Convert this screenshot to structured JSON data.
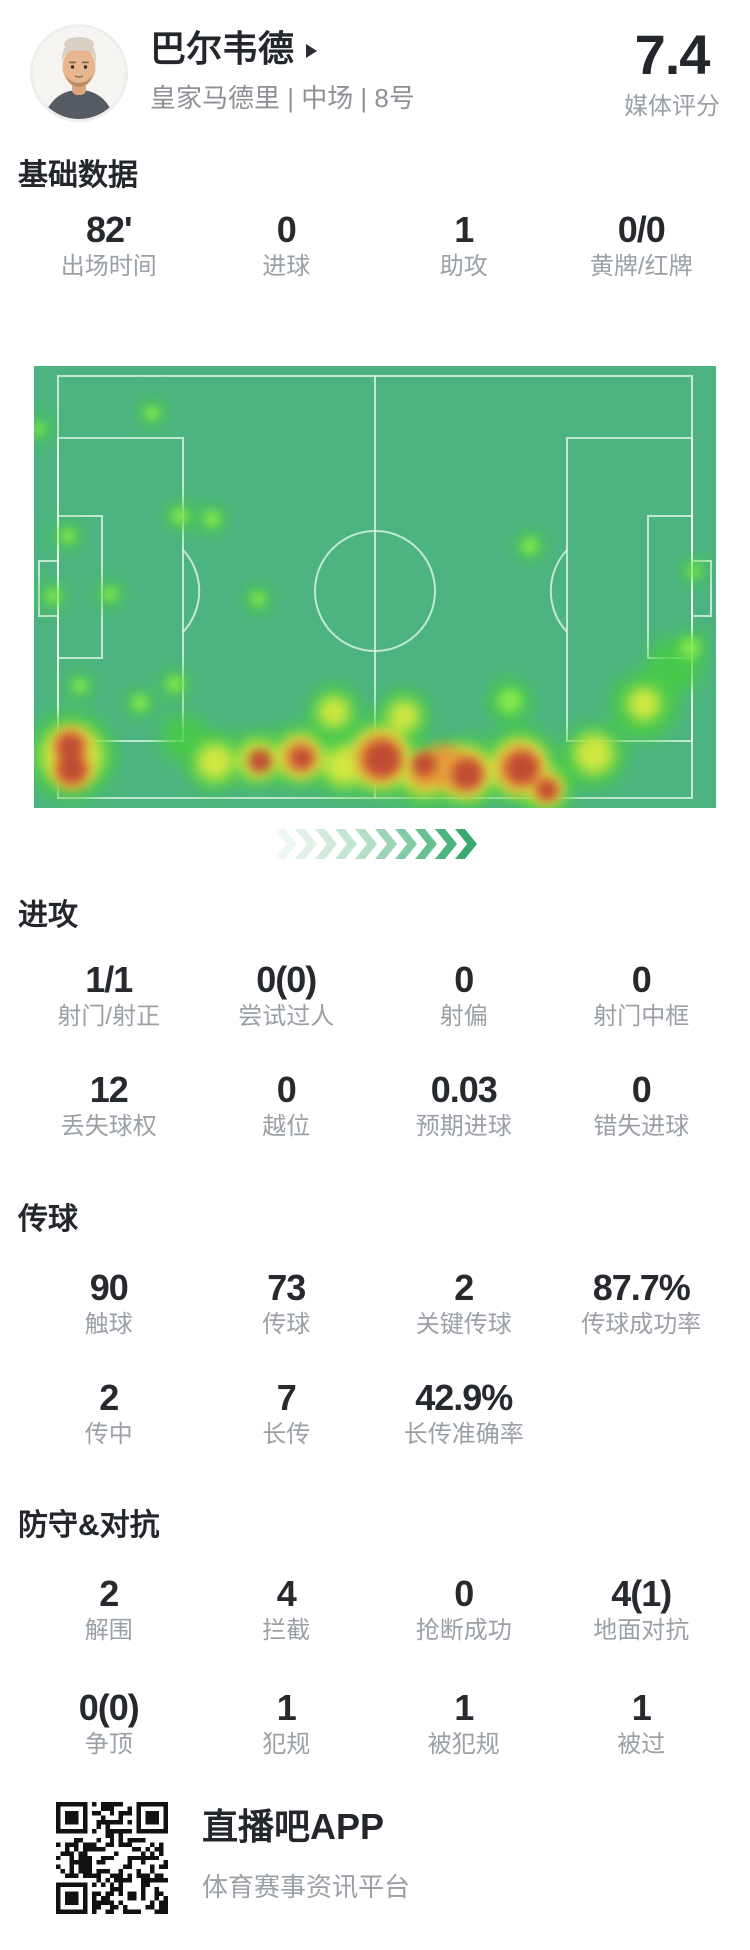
{
  "header": {
    "player_name": "巴尔韦德",
    "team_line": "皇家马德里 | 中场 | 8号",
    "rating": "7.4",
    "rating_label": "媒体评分"
  },
  "sections": [
    {
      "title": "基础数据",
      "rows": [
        {
          "cells": [
            {
              "value": "82'",
              "label": "出场时间"
            },
            {
              "value": "0",
              "label": "进球"
            },
            {
              "value": "1",
              "label": "助攻"
            },
            {
              "value": "0/0",
              "label": "黄牌/红牌"
            }
          ]
        }
      ]
    },
    {
      "title": "进攻",
      "rows": [
        {
          "cells": [
            {
              "value": "1/1",
              "label": "射门/射正"
            },
            {
              "value": "0(0)",
              "label": "尝试过人"
            },
            {
              "value": "0",
              "label": "射偏"
            },
            {
              "value": "0",
              "label": "射门中框"
            }
          ]
        },
        {
          "cells": [
            {
              "value": "12",
              "label": "丢失球权"
            },
            {
              "value": "0",
              "label": "越位"
            },
            {
              "value": "0.03",
              "label": "预期进球"
            },
            {
              "value": "0",
              "label": "错失进球"
            }
          ]
        }
      ]
    },
    {
      "title": "传球",
      "rows": [
        {
          "cells": [
            {
              "value": "90",
              "label": "触球"
            },
            {
              "value": "73",
              "label": "传球"
            },
            {
              "value": "2",
              "label": "关键传球"
            },
            {
              "value": "87.7%",
              "label": "传球成功率"
            }
          ]
        },
        {
          "cells": [
            {
              "value": "2",
              "label": "传中"
            },
            {
              "value": "7",
              "label": "长传"
            },
            {
              "value": "42.9%",
              "label": "长传准确率"
            }
          ]
        }
      ]
    },
    {
      "title": "防守&对抗",
      "rows": [
        {
          "cells": [
            {
              "value": "2",
              "label": "解围"
            },
            {
              "value": "4",
              "label": "拦截"
            },
            {
              "value": "0",
              "label": "抢断成功"
            },
            {
              "value": "4(1)",
              "label": "地面对抗"
            }
          ]
        },
        {
          "cells": [
            {
              "value": "0(0)",
              "label": "争顶"
            },
            {
              "value": "1",
              "label": "犯规"
            },
            {
              "value": "1",
              "label": "被犯规"
            },
            {
              "value": "1",
              "label": "被过"
            }
          ]
        }
      ]
    }
  ],
  "footer": {
    "app_name": "直播吧APP",
    "app_desc": "体育赛事资讯平台",
    "qr_icon": "qr-code"
  },
  "colors": {
    "pitch_green": "#4db380",
    "heat_green_halo": "#47cf3e",
    "heat_green_core": "#8deb4d",
    "heat_yellow": "#ddea40",
    "heat_orange": "#e79a3b",
    "heat_red": "#c04a32",
    "value_text": "#26292e",
    "label_text": "#9aa0a6"
  },
  "heatmap": {
    "green_halos": [
      [
        118,
        47,
        13
      ],
      [
        5,
        63,
        12
      ],
      [
        34,
        170,
        13
      ],
      [
        146,
        150,
        14
      ],
      [
        178,
        153,
        14
      ],
      [
        19,
        230,
        13
      ],
      [
        76,
        228,
        13
      ],
      [
        224,
        233,
        13
      ],
      [
        46,
        320,
        13
      ],
      [
        106,
        337,
        14
      ],
      [
        141,
        318,
        14
      ],
      [
        496,
        180,
        14
      ],
      [
        660,
        205,
        12
      ],
      [
        656,
        282,
        17
      ],
      [
        38,
        390,
        44
      ],
      [
        150,
        372,
        24
      ],
      [
        181,
        395,
        30
      ],
      [
        224,
        393,
        28
      ],
      [
        266,
        390,
        32
      ],
      [
        300,
        345,
        26
      ],
      [
        310,
        400,
        30
      ],
      [
        346,
        392,
        40
      ],
      [
        370,
        350,
        26
      ],
      [
        390,
        410,
        32
      ],
      [
        431,
        407,
        36
      ],
      [
        476,
        335,
        22
      ],
      [
        486,
        400,
        38
      ],
      [
        511,
        422,
        28
      ],
      [
        560,
        390,
        32
      ],
      [
        610,
        340,
        34
      ],
      [
        640,
        300,
        28
      ]
    ],
    "green_cores": [
      [
        118,
        47,
        7
      ],
      [
        5,
        63,
        6
      ],
      [
        34,
        170,
        7
      ],
      [
        146,
        150,
        8
      ],
      [
        178,
        153,
        8
      ],
      [
        19,
        230,
        7
      ],
      [
        76,
        228,
        7
      ],
      [
        224,
        233,
        7
      ],
      [
        46,
        320,
        7
      ],
      [
        106,
        337,
        8
      ],
      [
        141,
        318,
        8
      ],
      [
        496,
        180,
        8
      ],
      [
        660,
        205,
        6
      ],
      [
        656,
        282,
        10
      ],
      [
        476,
        335,
        12
      ]
    ],
    "yellows": [
      [
        38,
        390,
        31
      ],
      [
        181,
        396,
        19
      ],
      [
        224,
        394,
        20
      ],
      [
        266,
        391,
        23
      ],
      [
        310,
        400,
        20
      ],
      [
        346,
        392,
        31
      ],
      [
        390,
        408,
        22
      ],
      [
        431,
        407,
        27
      ],
      [
        486,
        401,
        29
      ],
      [
        511,
        422,
        19
      ],
      [
        560,
        388,
        20
      ],
      [
        610,
        338,
        17
      ],
      [
        300,
        346,
        16
      ],
      [
        370,
        350,
        16
      ]
    ],
    "oranges": [
      [
        37,
        380,
        18
      ],
      [
        38,
        404,
        19
      ],
      [
        266,
        391,
        17
      ],
      [
        346,
        392,
        25
      ],
      [
        410,
        400,
        22
      ],
      [
        431,
        407,
        21
      ],
      [
        486,
        402,
        23
      ],
      [
        513,
        423,
        13
      ],
      [
        390,
        409,
        14
      ]
    ],
    "reds": [
      [
        36,
        381,
        13
      ],
      [
        38,
        403,
        14
      ],
      [
        226,
        395,
        12
      ],
      [
        268,
        392,
        11
      ],
      [
        348,
        393,
        18
      ],
      [
        390,
        398,
        12
      ],
      [
        433,
        408,
        15
      ],
      [
        488,
        402,
        16
      ],
      [
        513,
        424,
        10
      ]
    ]
  },
  "chevrons": {
    "colors": [
      "#edf6f0",
      "#e1f1e7",
      "#d3ebdc",
      "#c3e5d1",
      "#b1dec4",
      "#9cd5b5",
      "#83cba4",
      "#68c091",
      "#4db37c",
      "#3aaa6f"
    ]
  }
}
